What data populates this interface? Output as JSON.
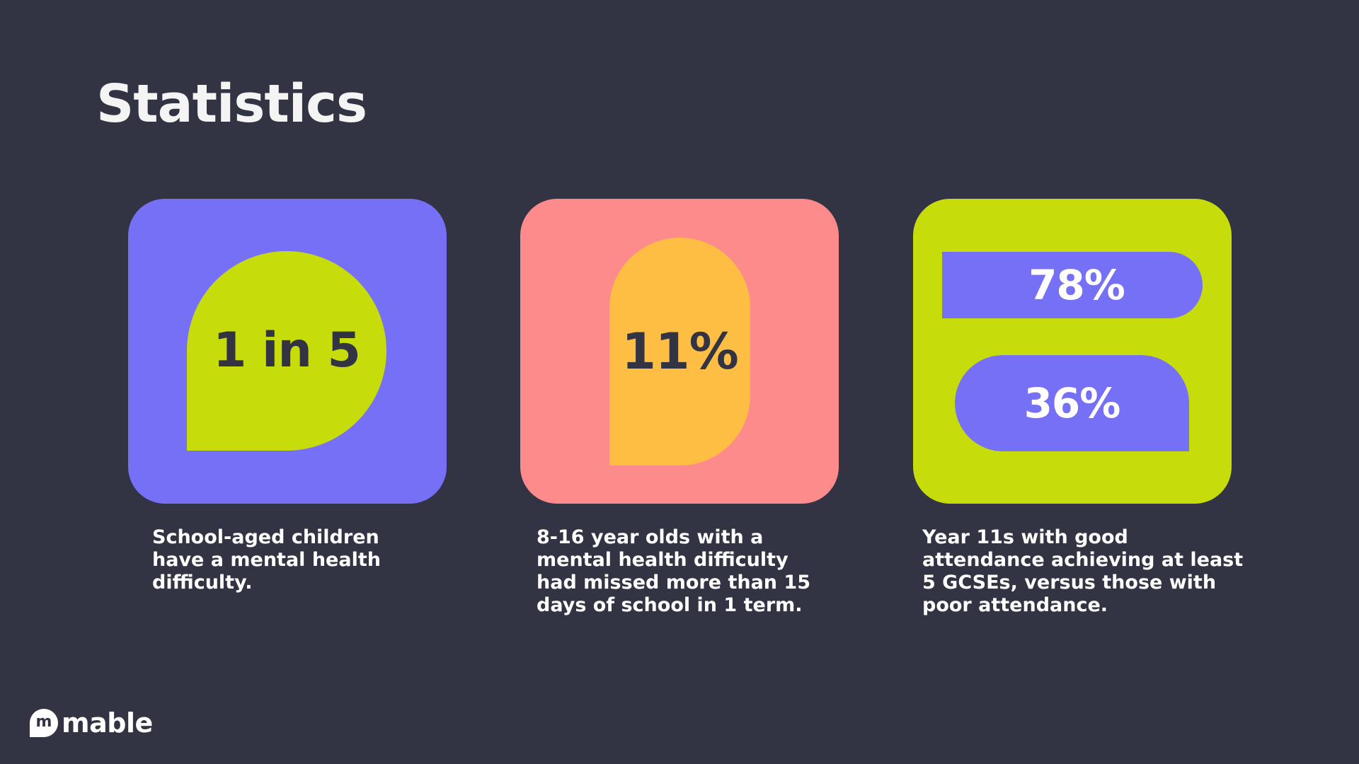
{
  "page": {
    "title": "Statistics"
  },
  "stats": [
    {
      "value": "1 in 5",
      "description": "School-aged children have a mental health difficulty.",
      "card_color": "#7670F6",
      "shape_color": "#C6DD0B"
    },
    {
      "value": "11%",
      "description": "8-16 year olds with a mental health difficulty had missed more than 15 days of school in 1 term.",
      "card_color": "#FE8B8B",
      "shape_color": "#FDBE43"
    },
    {
      "values": [
        "78%",
        "36%"
      ],
      "description": "Year 11s with good attendance achieving at least 5 GCSEs, versus those with poor attendance.",
      "card_color": "#C6DD0B",
      "shape_color": "#7670F6"
    }
  ],
  "brand": {
    "mark": "m",
    "name": "mable"
  }
}
